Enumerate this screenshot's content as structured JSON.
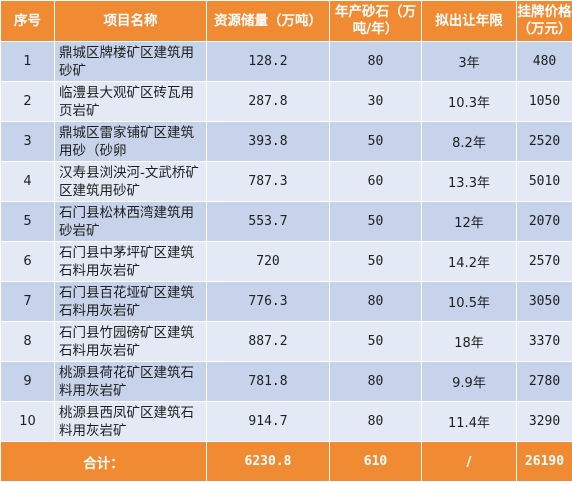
{
  "headers": [
    "序号",
    "项目名称",
    "资源储量（万吨）",
    "年产砂石（万吨/年）",
    "拟出让年限",
    "挂牌价格（万元）"
  ],
  "rows": [
    {
      "no": "1",
      "name": "鼎城区牌楼矿区建筑用砂矿",
      "reserve": "128.2",
      "annual": "80",
      "years": "3年",
      "price": "480"
    },
    {
      "no": "2",
      "name": "临澧县大观矿区砖瓦用页岩矿",
      "reserve": "287.8",
      "annual": "30",
      "years": "10.3年",
      "price": "1050"
    },
    {
      "no": "3",
      "name": "鼎城区雷家铺矿区建筑用砂（砂卵",
      "reserve": "393.8",
      "annual": "50",
      "years": "8.2年",
      "price": "2520"
    },
    {
      "no": "4",
      "name": "汉寿县浏泱河-文武桥矿区建筑用砂矿",
      "reserve": "787.3",
      "annual": "60",
      "years": "13.3年",
      "price": "5010"
    },
    {
      "no": "5",
      "name": "石门县松林西湾建筑用砂岩矿",
      "reserve": "553.7",
      "annual": "50",
      "years": "12年",
      "price": "2070"
    },
    {
      "no": "6",
      "name": "石门县中茅坪矿区建筑石料用灰岩矿",
      "reserve": "720",
      "annual": "50",
      "years": "14.2年",
      "price": "2570"
    },
    {
      "no": "7",
      "name": "石门县百花垭矿区建筑石料用灰岩矿",
      "reserve": "776.3",
      "annual": "80",
      "years": "10.5年",
      "price": "3050"
    },
    {
      "no": "8",
      "name": "石门县竹园磅矿区建筑石料用灰岩矿",
      "reserve": "887.2",
      "annual": "50",
      "years": "18年",
      "price": "3370"
    },
    {
      "no": "9",
      "name": "桃源县荷花矿区建筑石料用灰岩矿",
      "reserve": "781.8",
      "annual": "80",
      "years": "9.9年",
      "price": "2780"
    },
    {
      "no": "10",
      "name": "桃源县西凤矿区建筑石料用灰岩矿",
      "reserve": "914.7",
      "annual": "80",
      "years": "11.4年",
      "price": "3290"
    }
  ],
  "total": {
    "label": "合计：",
    "reserve": "6230.8",
    "annual": "610",
    "years": "/",
    "price": "26190"
  },
  "colors": {
    "header_bg": "#f08a33",
    "row_dark": "#c6d3ea",
    "row_light": "#e4eaf5",
    "header_text": "#ffffff"
  }
}
